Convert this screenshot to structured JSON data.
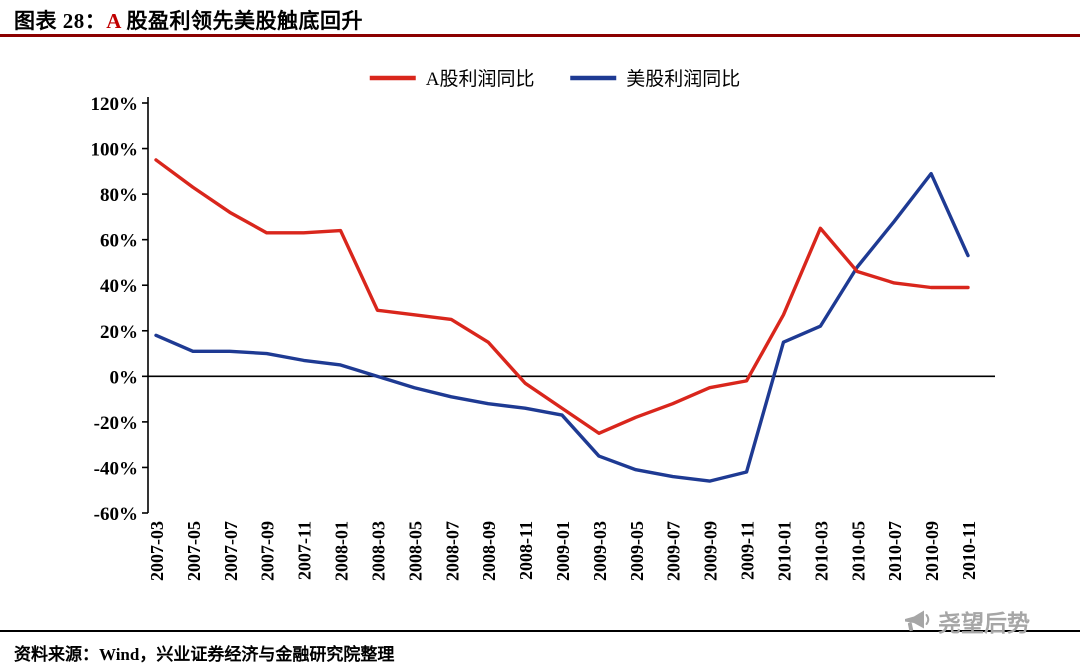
{
  "header": {
    "prefix": "图表 28：",
    "highlight": "A",
    "rest": " 股盈利领先美股触底回升",
    "highlight_color": "#c00000"
  },
  "footer": {
    "source": "资料来源：Wind，兴业证券经济与金融研究院整理"
  },
  "watermark": {
    "text": "尧望后势"
  },
  "chart_data": {
    "type": "line",
    "title": "A股盈利领先美股触底回升",
    "xlabel": "",
    "ylabel": "",
    "grid": false,
    "legend_position": "top-center",
    "ylim": [
      -60,
      120
    ],
    "ytick_step": 20,
    "ytick_suffix": "%",
    "categories": [
      "2007-03",
      "2007-05",
      "2007-07",
      "2007-09",
      "2007-11",
      "2008-01",
      "2008-03",
      "2008-05",
      "2008-07",
      "2008-09",
      "2008-11",
      "2009-01",
      "2009-03",
      "2009-05",
      "2009-07",
      "2009-09",
      "2009-11",
      "2010-01",
      "2010-03",
      "2010-05",
      "2010-07",
      "2010-09",
      "2010-11"
    ],
    "series": [
      {
        "name": "A股利润同比",
        "color": "#d9261c",
        "values": [
          95,
          83,
          72,
          63,
          63,
          64,
          29,
          27,
          25,
          15,
          -3,
          -14,
          -25,
          -18,
          -12,
          -5,
          -2,
          27,
          65,
          46,
          41,
          39,
          39
        ]
      },
      {
        "name": "美股利润同比",
        "color": "#1e3a93",
        "values": [
          18,
          11,
          11,
          10,
          7,
          5,
          0,
          -5,
          -9,
          -12,
          -14,
          -17,
          -35,
          -41,
          -44,
          -46,
          -42,
          15,
          22,
          48,
          68,
          89,
          53
        ]
      }
    ]
  }
}
